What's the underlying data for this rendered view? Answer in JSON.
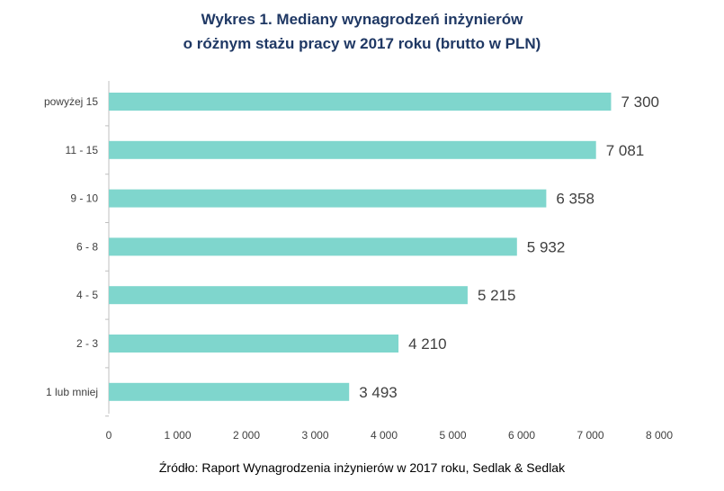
{
  "title_line1": "Wykres 1. Mediany wynagrodzeń inżynierów",
  "title_line2": "o różnym stażu pracy w 2017 roku (brutto w PLN)",
  "source": "Źródło: Raport Wynagrodzenia inżynierów w 2017 roku, Sedlak & Sedlak",
  "colors": {
    "bar": "#7fd6cd",
    "title": "#1f3864",
    "text": "#404040",
    "axis": "#bfbfbf"
  },
  "chart_data": {
    "type": "bar",
    "orientation": "horizontal",
    "title": "Wykres 1. Mediany wynagrodzeń inżynierów o różnym stażu pracy w 2017 roku (brutto w PLN)",
    "categories": [
      "powyżej 15",
      "11 - 15",
      "9 - 10",
      "6 - 8",
      "4 - 5",
      "2 - 3",
      "1 lub mniej"
    ],
    "values": [
      7300,
      7081,
      6358,
      5932,
      5215,
      4210,
      3493
    ],
    "value_labels": [
      "7 300",
      "7 081",
      "6 358",
      "5 932",
      "5 215",
      "4 210",
      "3 493"
    ],
    "xlim": [
      0,
      8000
    ],
    "x_ticks": [
      0,
      1000,
      2000,
      3000,
      4000,
      5000,
      6000,
      7000,
      8000
    ],
    "x_tick_labels": [
      "0",
      "1 000",
      "2 000",
      "3 000",
      "4 000",
      "5 000",
      "6 000",
      "7 000",
      "8 000"
    ],
    "xlabel": "",
    "ylabel": "",
    "grid": false,
    "legend": "none"
  }
}
